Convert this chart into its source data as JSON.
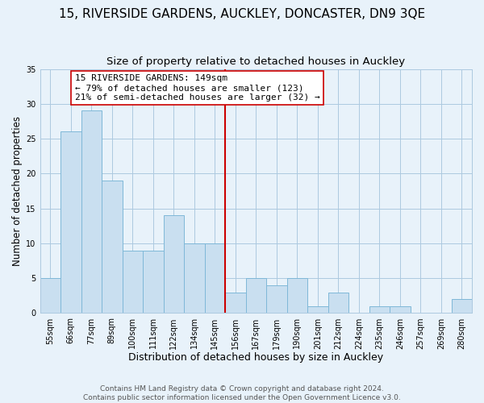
{
  "title": "15, RIVERSIDE GARDENS, AUCKLEY, DONCASTER, DN9 3QE",
  "subtitle": "Size of property relative to detached houses in Auckley",
  "xlabel": "Distribution of detached houses by size in Auckley",
  "ylabel": "Number of detached properties",
  "bar_labels": [
    "55sqm",
    "66sqm",
    "77sqm",
    "89sqm",
    "100sqm",
    "111sqm",
    "122sqm",
    "134sqm",
    "145sqm",
    "156sqm",
    "167sqm",
    "179sqm",
    "190sqm",
    "201sqm",
    "212sqm",
    "224sqm",
    "235sqm",
    "246sqm",
    "257sqm",
    "269sqm",
    "280sqm"
  ],
  "bar_values": [
    5,
    26,
    29,
    19,
    9,
    9,
    14,
    10,
    10,
    3,
    5,
    4,
    5,
    1,
    3,
    0,
    1,
    1,
    0,
    0,
    2
  ],
  "bar_color": "#c9dff0",
  "bar_edge_color": "#7fb8d8",
  "grid_color": "#adc9e0",
  "background_color": "#e8f2fa",
  "vline_x_index": 8,
  "vline_color": "#cc0000",
  "annotation_line1": "15 RIVERSIDE GARDENS: 149sqm",
  "annotation_line2": "← 79% of detached houses are smaller (123)",
  "annotation_line3": "21% of semi-detached houses are larger (32) →",
  "ylim": [
    0,
    35
  ],
  "yticks": [
    0,
    5,
    10,
    15,
    20,
    25,
    30,
    35
  ],
  "footer_text": "Contains HM Land Registry data © Crown copyright and database right 2024.\nContains public sector information licensed under the Open Government Licence v3.0.",
  "title_fontsize": 11,
  "subtitle_fontsize": 9.5,
  "xlabel_fontsize": 9,
  "ylabel_fontsize": 8.5,
  "tick_fontsize": 7,
  "annotation_fontsize": 8,
  "footer_fontsize": 6.5
}
